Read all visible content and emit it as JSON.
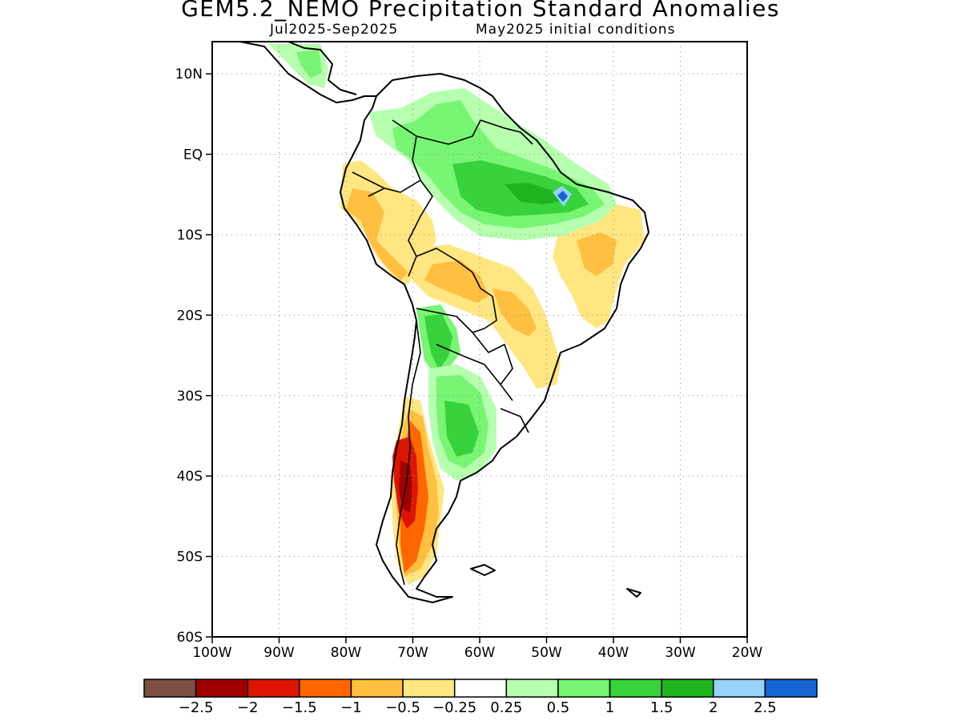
{
  "title": "GEM5.2_NEMO Precipitation Standard Anomalies",
  "subtitle_left": "Jul2025-Sep2025",
  "subtitle_right": "May2025 initial conditions",
  "map": {
    "region": "South America",
    "lon_range": [
      -100,
      -20
    ],
    "lat_range": [
      -60,
      14
    ],
    "lat_ticks": [
      {
        "value": 10,
        "label": "10N"
      },
      {
        "value": 0,
        "label": "EQ"
      },
      {
        "value": -10,
        "label": "10S"
      },
      {
        "value": -20,
        "label": "20S"
      },
      {
        "value": -30,
        "label": "30S"
      },
      {
        "value": -40,
        "label": "40S"
      },
      {
        "value": -50,
        "label": "50S"
      },
      {
        "value": -60,
        "label": "60S"
      }
    ],
    "lon_ticks": [
      {
        "value": -100,
        "label": "100W"
      },
      {
        "value": -90,
        "label": "90W"
      },
      {
        "value": -80,
        "label": "80W"
      },
      {
        "value": -70,
        "label": "70W"
      },
      {
        "value": -60,
        "label": "60W"
      },
      {
        "value": -50,
        "label": "50W"
      },
      {
        "value": -40,
        "label": "40W"
      },
      {
        "value": -30,
        "label": "30W"
      },
      {
        "value": -20,
        "label": "20W"
      }
    ],
    "grid": "dotted"
  },
  "colorbar": {
    "colors": [
      "#7b5041",
      "#a00000",
      "#dd1500",
      "#ff6600",
      "#ffbf40",
      "#ffe680",
      "#ffffff",
      "#b5ffaf",
      "#78f573",
      "#37d23c",
      "#1eb41e",
      "#96d2fa",
      "#1464d2"
    ],
    "labels": [
      "−2.5",
      "−2",
      "−1.5",
      "−1",
      "−0.5",
      "−0.25",
      "0.25",
      "0.5",
      "1",
      "1.5",
      "2",
      "2.5"
    ]
  }
}
